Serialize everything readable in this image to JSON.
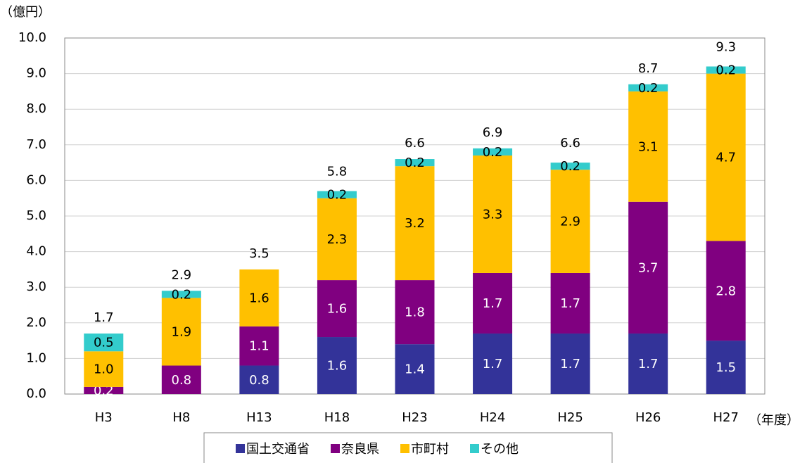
{
  "chart_data": {
    "type": "stacked_bar",
    "y_unit_label": "（億円）",
    "x_unit_label": "（年度）",
    "categories": [
      "H3",
      "H8",
      "H13",
      "H18",
      "H23",
      "H24",
      "H25",
      "H26",
      "H27"
    ],
    "series": [
      {
        "name": "国土交通省",
        "color": "#333399",
        "label_color": "#ffffff",
        "values": [
          null,
          null,
          0.8,
          1.6,
          1.4,
          1.7,
          1.7,
          1.7,
          1.5
        ],
        "value_labels": [
          null,
          null,
          "0.8",
          "1.6",
          "1.4",
          "1.7",
          "1.7",
          "1.7",
          "1.5"
        ]
      },
      {
        "name": "奈良県",
        "color": "#800080",
        "label_color": "#ffffff",
        "values": [
          0.2,
          0.8,
          1.1,
          1.6,
          1.8,
          1.7,
          1.7,
          3.7,
          2.8
        ],
        "value_labels": [
          "0.2",
          "0.8",
          "1.1",
          "1.6",
          "1.8",
          "1.7",
          "1.7",
          "3.7",
          "2.8"
        ]
      },
      {
        "name": "市町村",
        "color": "#ffc000",
        "label_color": "#000000",
        "values": [
          1.0,
          1.9,
          1.6,
          2.3,
          3.2,
          3.3,
          2.9,
          3.1,
          4.7
        ],
        "value_labels": [
          "1.0",
          "1.9",
          "1.6",
          "2.3",
          "3.2",
          "3.3",
          "2.9",
          "3.1",
          "4.7"
        ]
      },
      {
        "name": "その他",
        "color": "#33cccc",
        "label_color": "#000000",
        "values": [
          0.5,
          0.2,
          null,
          0.2,
          0.2,
          0.2,
          0.2,
          0.2,
          0.2
        ],
        "value_labels": [
          "0.5",
          "0.2",
          null,
          "0.2",
          "0.2",
          "0.2",
          "0.2",
          "0.2",
          "0.2"
        ]
      }
    ],
    "totals": [
      1.7,
      2.9,
      3.5,
      5.8,
      6.6,
      6.9,
      6.6,
      8.7,
      9.3
    ],
    "ylim": [
      0,
      10
    ],
    "yticks": [
      {
        "value": 0,
        "label": "0.0"
      },
      {
        "value": 1,
        "label": "1.0"
      },
      {
        "value": 2,
        "label": "2.0"
      },
      {
        "value": 3,
        "label": "3.0"
      },
      {
        "value": 4,
        "label": "4.0"
      },
      {
        "value": 5,
        "label": "5.0"
      },
      {
        "value": 6,
        "label": "6.0"
      },
      {
        "value": 7,
        "label": "7.0"
      },
      {
        "value": 8,
        "label": "8.0"
      },
      {
        "value": 9,
        "label": "9.0"
      },
      {
        "value": 10,
        "label": "10.0"
      }
    ],
    "grid": true
  }
}
